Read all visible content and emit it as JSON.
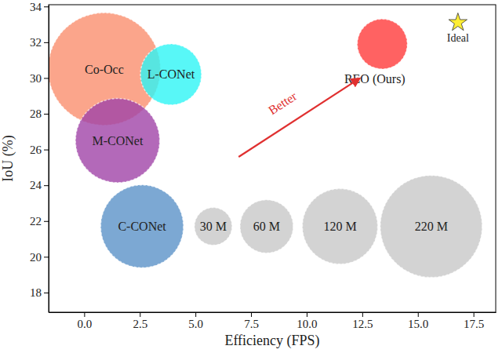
{
  "chart_data": {
    "type": "bubble",
    "x_label": "Efficiency (FPS)",
    "y_label": "IoU (%)",
    "xlim": [
      -1.6,
      18.5
    ],
    "ylim": [
      16.9,
      34.1
    ],
    "xticks": [
      {
        "value": 0,
        "label": "0.0"
      },
      2.5,
      {
        "value": 5,
        "label": "5.0"
      },
      7.5,
      {
        "value": 10,
        "label": "10.0"
      },
      12.5,
      {
        "value": 15,
        "label": "15.0"
      },
      17.5
    ],
    "yticks": [
      18,
      20,
      22,
      24,
      26,
      28,
      30,
      32,
      34
    ],
    "annotations": [
      "Better"
    ],
    "series": [
      {
        "name": "Co-Occ",
        "color": "#fa8f6e",
        "x": [
          0.9
        ],
        "values": [
          30.5
        ],
        "sizes": [
          268
        ]
      },
      {
        "name": "L-CONet",
        "color": "#2ef5f5",
        "x": [
          3.9
        ],
        "values": [
          30.2
        ],
        "sizes": [
          79
        ]
      },
      {
        "name": "M-CONet",
        "color": "#a044a8",
        "x": [
          1.5
        ],
        "values": [
          26.5
        ],
        "sizes": [
          150
        ]
      },
      {
        "name": "C-CONet",
        "color": "#5b92c8",
        "x": [
          2.6
        ],
        "values": [
          21.7
        ],
        "sizes": [
          145
        ]
      },
      {
        "name": "30 M",
        "color": "#c8c8c8",
        "x": [
          5.8
        ],
        "values": [
          21.7
        ],
        "sizes": [
          30
        ]
      },
      {
        "name": "60 M",
        "color": "#c8c8c8",
        "x": [
          8.2
        ],
        "values": [
          21.7
        ],
        "sizes": [
          60
        ]
      },
      {
        "name": "120 M",
        "color": "#c8c8c8",
        "x": [
          11.5
        ],
        "values": [
          21.7
        ],
        "sizes": [
          120
        ]
      },
      {
        "name": "220 M",
        "color": "#c8c8c8",
        "x": [
          15.6
        ],
        "values": [
          21.7
        ],
        "sizes": [
          220
        ]
      },
      {
        "name": "REO (Ours)",
        "color": "#ff3b3b",
        "x": [
          13.4
        ],
        "values": [
          31.9
        ],
        "sizes": [
          53
        ]
      },
      {
        "name": "Ideal",
        "color": "#ffee33",
        "marker": "star",
        "x": [
          16.8
        ],
        "values": [
          33.1
        ]
      }
    ]
  }
}
